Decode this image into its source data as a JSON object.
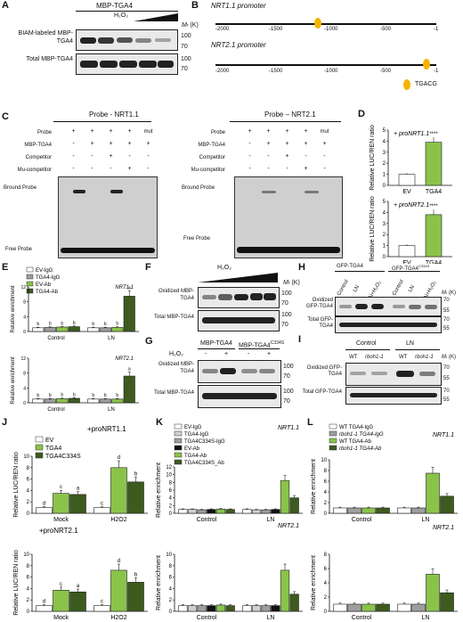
{
  "colors": {
    "ev": "#ffffff",
    "tga4": "#8bc34a",
    "tga4_mut": "#7aa33c",
    "dark": "#3d5a1f",
    "gray": "#9e9e9e",
    "black": "#111111"
  },
  "panels": {
    "A": "A",
    "B": "B",
    "C": "C",
    "D": "D",
    "E": "E",
    "F": "F",
    "G": "G",
    "H": "H",
    "I": "I",
    "J": "J",
    "K": "K",
    "L": "L"
  },
  "A": {
    "header": "MBP-TGA4",
    "h2o2": "H₂O₂",
    "mr": "M",
    "mr_unit": "(K)",
    "row1": "BIAM-labeled MBP-TGA4",
    "row2": "Total MBP-TGA4",
    "mw": [
      "100",
      "70",
      "100",
      "70"
    ]
  },
  "B": {
    "p1": "NRT1.1 promoter",
    "p2": "NRT2.1 promoter",
    "ticks": [
      "-2000",
      "-1500",
      "-1000",
      "-500",
      "-1"
    ],
    "motif": "TGACG"
  },
  "C": {
    "title1": "Probe - NRT1.1",
    "title2": "Probe – NRT2.1",
    "rows": [
      "Probe",
      "MBP-TGA4",
      "Competitor",
      "Mu-competitor"
    ],
    "mut": "mut",
    "bound": "Bround Probe",
    "free": "Free Probe",
    "grid1": [
      [
        "+",
        "+",
        "+",
        "+",
        "mut"
      ],
      [
        "-",
        "+",
        "+",
        "+",
        "+"
      ],
      [
        "-",
        "-",
        "+",
        "-",
        "-"
      ],
      [
        "-",
        "-",
        "-",
        "+",
        "-"
      ]
    ],
    "grid2": [
      [
        "+",
        "+",
        "+",
        "+",
        "mut"
      ],
      [
        "-",
        "+",
        "+",
        "+",
        "+"
      ],
      [
        "-",
        "-",
        "+",
        "-",
        "-"
      ],
      [
        "-",
        "-",
        "-",
        "+",
        "-"
      ]
    ]
  },
  "D": {
    "ylabel1": "Relative LUC/REN ratio",
    "ylabel2": "Relative LUC/REN ratio",
    "label1": "+ proNRT1.1",
    "label2": "+ proNRT2.1",
    "xcats": [
      "EV",
      "TGA4"
    ],
    "yt1": [
      "0",
      "1",
      "2",
      "3",
      "4",
      "5"
    ],
    "yt2": [
      "0",
      "1",
      "2",
      "3",
      "4",
      "5"
    ],
    "stars": "****"
  },
  "E": {
    "legend": [
      "EV-IgG",
      "TGA4-IgG",
      "EV-Ab",
      "TGA4-Ab"
    ],
    "gene1": "NRT1.1",
    "gene2": "NRT2.1",
    "ylabel": "Relative enrichment",
    "xcats": [
      "Control",
      "LN"
    ],
    "letters": [
      "b",
      "b",
      "b",
      "b",
      "b",
      "b",
      "b",
      "a"
    ],
    "yt1": [
      "0",
      "4",
      "8",
      "12"
    ],
    "yt2": [
      "0",
      "4",
      "8",
      "12"
    ]
  },
  "F": {
    "h2o2": "H₂O₂",
    "row1": "Oxidized MBP-TGA4",
    "row2": "Total MBP-TGA4",
    "mw": [
      "100",
      "70",
      "100",
      "70"
    ],
    "mr": "M",
    "mr_unit": "(K)"
  },
  "G": {
    "lbl1": "MBP-TGA4",
    "lbl2": "MBP-TGA4",
    "sup": "C334S",
    "h2o2": "H₂O₂",
    "signs": [
      "-",
      "+",
      "-",
      "+"
    ],
    "row1": "Oxidized MBP-TGA4",
    "row2": "Total MBP-TGA4",
    "mw": [
      "100",
      "70",
      "100",
      "70"
    ]
  },
  "H": {
    "lbl1": "GFP-TGA4",
    "lbl2": "GFP-TGA4",
    "sup": "C334S",
    "cols": [
      "Control",
      "LN",
      "LN+H₂O₂",
      "Control",
      "LN",
      "LN+H₂O₂"
    ],
    "row1": "Oxidized GFP-TGA4",
    "row2": "Total GFP-TGA4",
    "mw": [
      "70",
      "55",
      "70",
      "55"
    ],
    "mr": "M",
    "mr_unit": "(K)"
  },
  "I": {
    "g1": "Control",
    "g2": "LN",
    "cols": [
      "WT",
      "rboh1-1",
      "WT",
      "rboh1-1"
    ],
    "row1": "Oxidized GFP-TGA4",
    "row2": "Total GFP-TGA4",
    "mw": [
      "70",
      "55",
      "70",
      "55"
    ],
    "mr": "M",
    "mr_unit": "(K)"
  },
  "J": {
    "legend": [
      "EV",
      "TGA4",
      "TGA4C334S"
    ],
    "label1": "+proNRT1.1",
    "label2": "+proNRT2.1",
    "ylabel": "Relative LUC/REN ratio",
    "xcats": [
      "Mock",
      "H₂O₂"
    ],
    "letters1": [
      "d",
      "c",
      "c",
      "d",
      "a",
      "b"
    ],
    "letters2": [
      "d",
      "c",
      "c",
      "d",
      "a",
      "b"
    ],
    "yt": [
      "0",
      "2",
      "4",
      "6",
      "8",
      "10"
    ]
  },
  "K": {
    "legend": [
      "EV-IgG",
      "TGA4-IgG",
      "TGA4C334S-IgG",
      "EV-Ab",
      "TGA4-Ab",
      "TGA4C334S_Ab"
    ],
    "gene1": "NRT1.1",
    "gene2": "NRT2.1",
    "ylabel": "Relative enrichment",
    "xcats": [
      "Control",
      "LN"
    ],
    "yt1": [
      "0",
      "2",
      "4",
      "6",
      "8",
      "10",
      "12"
    ],
    "yt2": [
      "0",
      "2",
      "4",
      "6",
      "8",
      "10"
    ]
  },
  "L": {
    "legend": [
      "WT TGA4-IgG",
      "rboh1-1 TGA4-IgG",
      "WT TGA4-Ab",
      "rboh1-1 TGA4-Ab"
    ],
    "gene1": "NRT1.1",
    "gene2": "NRT2.1",
    "ylabel": "Relative enrichment",
    "xcats": [
      "Control",
      "LN"
    ],
    "yt1": [
      "0",
      "2",
      "4",
      "6",
      "8",
      "10"
    ],
    "yt2": [
      "0",
      "2",
      "4",
      "6",
      "8"
    ]
  },
  "chart_data": [
    {
      "type": "bar",
      "panel": "D-top",
      "categories": [
        "EV",
        "TGA4"
      ],
      "values": [
        1.0,
        3.9
      ],
      "ylim": [
        0,
        5
      ]
    },
    {
      "type": "bar",
      "panel": "D-bottom",
      "categories": [
        "EV",
        "TGA4"
      ],
      "values": [
        1.0,
        3.8
      ],
      "ylim": [
        0,
        5
      ]
    },
    {
      "type": "bar",
      "panel": "E-top",
      "categories": [
        "Control",
        "LN"
      ],
      "series": [
        {
          "name": "EV-IgG",
          "values": [
            1.0,
            1.0
          ]
        },
        {
          "name": "TGA4-IgG",
          "values": [
            1.1,
            1.0
          ]
        },
        {
          "name": "EV-Ab",
          "values": [
            1.2,
            1.1
          ]
        },
        {
          "name": "TGA4-Ab",
          "values": [
            1.3,
            9.5
          ]
        }
      ],
      "ylim": [
        0,
        13
      ]
    },
    {
      "type": "bar",
      "panel": "E-bottom",
      "categories": [
        "Control",
        "LN"
      ],
      "series": [
        {
          "name": "EV-IgG",
          "values": [
            1.0,
            1.0
          ]
        },
        {
          "name": "TGA4-IgG",
          "values": [
            1.0,
            1.0
          ]
        },
        {
          "name": "EV-Ab",
          "values": [
            1.1,
            1.0
          ]
        },
        {
          "name": "TGA4-Ab",
          "values": [
            1.2,
            7.2
          ]
        }
      ],
      "ylim": [
        0,
        13
      ]
    },
    {
      "type": "bar",
      "panel": "J-top",
      "categories": [
        "Mock",
        "H2O2"
      ],
      "series": [
        {
          "name": "EV",
          "values": [
            1.0,
            1.0
          ]
        },
        {
          "name": "TGA4",
          "values": [
            3.5,
            8.0
          ]
        },
        {
          "name": "TGA4C334S",
          "values": [
            3.3,
            5.5
          ]
        }
      ],
      "ylim": [
        0,
        10
      ]
    },
    {
      "type": "bar",
      "panel": "J-bottom",
      "categories": [
        "Mock",
        "H2O2"
      ],
      "series": [
        {
          "name": "EV",
          "values": [
            1.0,
            1.0
          ]
        },
        {
          "name": "TGA4",
          "values": [
            3.7,
            7.2
          ]
        },
        {
          "name": "TGA4C334S",
          "values": [
            3.4,
            5.1
          ]
        }
      ],
      "ylim": [
        0,
        10
      ]
    },
    {
      "type": "bar",
      "panel": "K-top",
      "categories": [
        "Control",
        "LN"
      ],
      "series": [
        {
          "name": "EV-IgG",
          "values": [
            1.0,
            1.0
          ]
        },
        {
          "name": "TGA4-IgG",
          "values": [
            1.0,
            0.9
          ]
        },
        {
          "name": "TGA4C334S-IgG",
          "values": [
            0.9,
            0.9
          ]
        },
        {
          "name": "EV-Ab",
          "values": [
            1.0,
            1.0
          ]
        },
        {
          "name": "TGA4-Ab",
          "values": [
            1.1,
            8.5
          ]
        },
        {
          "name": "TGA4C334S_Ab",
          "values": [
            1.0,
            4.0
          ]
        }
      ],
      "ylim": [
        0,
        12
      ]
    },
    {
      "type": "bar",
      "panel": "K-bottom",
      "categories": [
        "Control",
        "LN"
      ],
      "series": [
        {
          "name": "EV-IgG",
          "values": [
            1.0,
            1.0
          ]
        },
        {
          "name": "TGA4-IgG",
          "values": [
            1.0,
            1.0
          ]
        },
        {
          "name": "TGA4C334S-IgG",
          "values": [
            1.0,
            1.0
          ]
        },
        {
          "name": "EV-Ab",
          "values": [
            1.0,
            1.0
          ]
        },
        {
          "name": "TGA4-Ab",
          "values": [
            1.1,
            7.2
          ]
        },
        {
          "name": "TGA4C334S_Ab",
          "values": [
            1.0,
            3.0
          ]
        }
      ],
      "ylim": [
        0,
        10
      ]
    },
    {
      "type": "bar",
      "panel": "L-top",
      "categories": [
        "Control",
        "LN"
      ],
      "series": [
        {
          "name": "WT TGA4-IgG",
          "values": [
            1.0,
            1.0
          ]
        },
        {
          "name": "rboh1-1 TGA4-IgG",
          "values": [
            1.0,
            1.0
          ]
        },
        {
          "name": "WT TGA4-Ab",
          "values": [
            1.0,
            7.5
          ]
        },
        {
          "name": "rboh1-1 TGA4-Ab",
          "values": [
            1.0,
            3.2
          ]
        }
      ],
      "ylim": [
        0,
        10
      ]
    },
    {
      "type": "bar",
      "panel": "L-bottom",
      "categories": [
        "Control",
        "LN"
      ],
      "series": [
        {
          "name": "WT TGA4-IgG",
          "values": [
            1.0,
            1.0
          ]
        },
        {
          "name": "rboh1-1 TGA4-IgG",
          "values": [
            1.0,
            1.0
          ]
        },
        {
          "name": "WT TGA4-Ab",
          "values": [
            1.0,
            5.2
          ]
        },
        {
          "name": "rboh1-1 TGA4-Ab",
          "values": [
            1.0,
            2.6
          ]
        }
      ],
      "ylim": [
        0,
        8
      ]
    }
  ]
}
